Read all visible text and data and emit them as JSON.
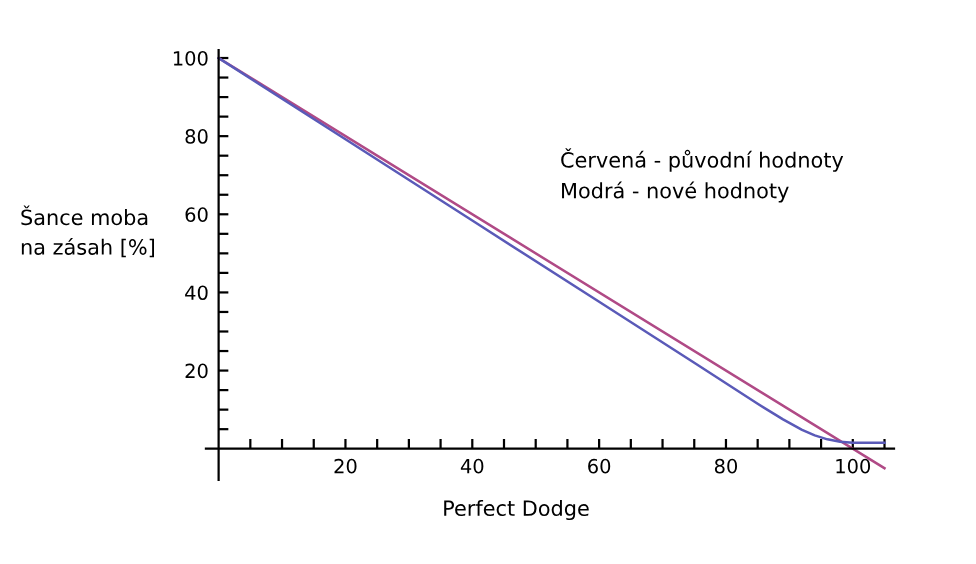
{
  "chart_data": {
    "type": "line",
    "xlabel": "Perfect Dodge",
    "ylabel": "Šance moba\nna zásah [%]",
    "annotations": [
      "Červená - původní hodnoty",
      "Modrá - nové hodnoty"
    ],
    "series": [
      {
        "color": "#b04a86",
        "x": [
          0,
          105
        ],
        "values": [
          100,
          -5
        ]
      },
      {
        "color": "#5a5ab8",
        "x": [
          0,
          20,
          40,
          60,
          75,
          85,
          89,
          92,
          94,
          96,
          98,
          100,
          105
        ],
        "values": [
          100,
          79.2,
          58.4,
          37.6,
          22,
          11.5,
          7.5,
          4.8,
          3.4,
          2.4,
          1.8,
          1.5,
          1.5
        ]
      }
    ],
    "xlim": [
      -2,
      106.5
    ],
    "ylim": [
      -8,
      102
    ],
    "xticks": [
      {
        "value": 5,
        "label": null
      },
      {
        "value": 10,
        "label": null
      },
      {
        "value": 15,
        "label": null
      },
      20,
      {
        "value": 25,
        "label": null
      },
      {
        "value": 30,
        "label": null
      },
      {
        "value": 35,
        "label": null
      },
      40,
      {
        "value": 45,
        "label": null
      },
      {
        "value": 50,
        "label": null
      },
      {
        "value": 55,
        "label": null
      },
      60,
      {
        "value": 65,
        "label": null
      },
      {
        "value": 70,
        "label": null
      },
      {
        "value": 75,
        "label": null
      },
      80,
      {
        "value": 85,
        "label": null
      },
      {
        "value": 90,
        "label": null
      },
      {
        "value": 95,
        "label": null
      },
      100,
      {
        "value": 105,
        "label": null
      }
    ],
    "yticks": [
      {
        "value": 5,
        "label": null
      },
      {
        "value": 10,
        "label": null
      },
      {
        "value": 15,
        "label": null
      },
      20,
      {
        "value": 25,
        "label": null
      },
      {
        "value": 30,
        "label": null
      },
      {
        "value": 35,
        "label": null
      },
      40,
      {
        "value": 45,
        "label": null
      },
      {
        "value": 50,
        "label": null
      },
      {
        "value": 55,
        "label": null
      },
      60,
      {
        "value": 65,
        "label": null
      },
      {
        "value": 70,
        "label": null
      },
      {
        "value": 75,
        "label": null
      },
      80,
      {
        "value": 85,
        "label": null
      },
      {
        "value": 90,
        "label": null
      },
      {
        "value": 95,
        "label": null
      },
      100
    ],
    "grid": false,
    "legend": false,
    "marker": "none",
    "line_style": "solid"
  }
}
